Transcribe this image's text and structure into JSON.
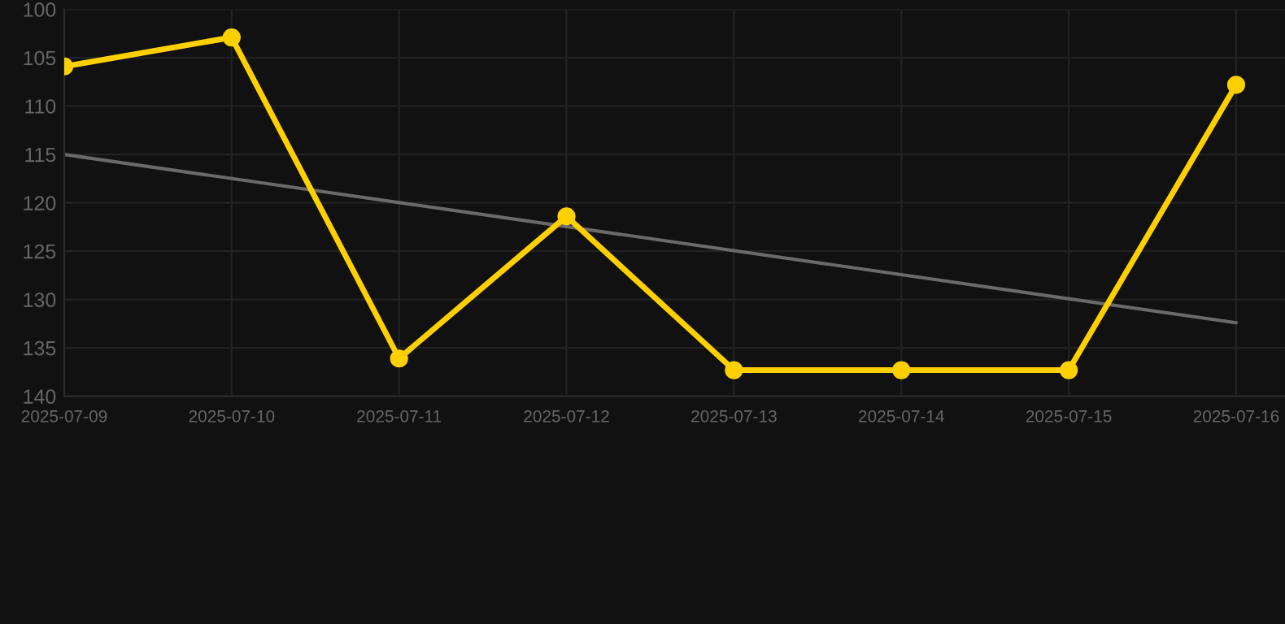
{
  "chart_data": {
    "type": "line",
    "x": [
      "2025-07-09",
      "2025-07-10",
      "2025-07-11",
      "2025-07-12",
      "2025-07-13",
      "2025-07-14",
      "2025-07-15",
      "2025-07-16"
    ],
    "series": [
      {
        "color": "#ffd000",
        "values": [
          105.9,
          102.9,
          136.1,
          121.4,
          137.3,
          137.3,
          137.3,
          107.8
        ],
        "marker": "circle"
      },
      {
        "type": "line",
        "color": "#6a6a6a",
        "x": [
          "2025-07-09",
          "2025-07-16"
        ],
        "values": [
          115.0,
          132.4
        ],
        "marker": "none"
      }
    ],
    "xlim": [
      "2025-07-09",
      "2025-07-16T07:00"
    ],
    "xticks": [
      {
        "value": "2025-07-09",
        "label": "2025-07-09"
      },
      {
        "value": "2025-07-10",
        "label": "2025-07-10"
      },
      {
        "value": "2025-07-11",
        "label": "2025-07-11"
      },
      {
        "value": "2025-07-12",
        "label": "2025-07-12"
      },
      {
        "value": "2025-07-13",
        "label": "2025-07-13"
      },
      {
        "value": "2025-07-14",
        "label": "2025-07-14"
      },
      {
        "value": "2025-07-15",
        "label": "2025-07-15"
      },
      {
        "value": "2025-07-16",
        "label": "2025-07-16"
      }
    ],
    "ylim": [
      140,
      100
    ],
    "yticks": [
      100,
      105,
      110,
      115,
      120,
      125,
      130,
      135,
      140
    ],
    "grid": true,
    "line_style": "solid"
  }
}
